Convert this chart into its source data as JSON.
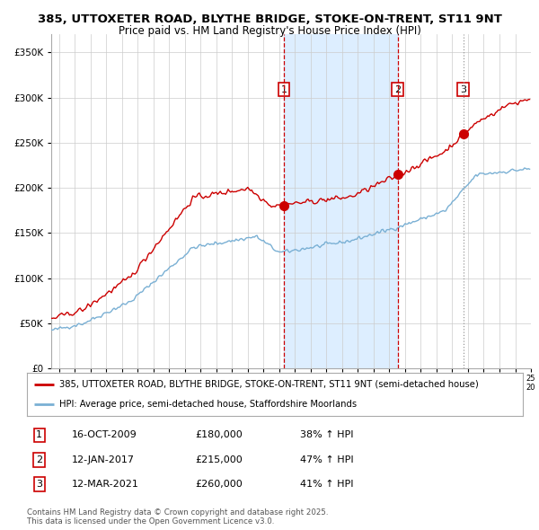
{
  "title_line1": "385, UTTOXETER ROAD, BLYTHE BRIDGE, STOKE-ON-TRENT, ST11 9NT",
  "title_line2": "Price paid vs. HM Land Registry's House Price Index (HPI)",
  "ylabel_ticks": [
    "£0",
    "£50K",
    "£100K",
    "£150K",
    "£200K",
    "£250K",
    "£300K",
    "£350K"
  ],
  "ytick_values": [
    0,
    50000,
    100000,
    150000,
    200000,
    250000,
    300000,
    350000
  ],
  "ylim": [
    0,
    370000
  ],
  "start_year": 1995,
  "end_year": 2025,
  "sale_dates": [
    "2009-10-16",
    "2017-01-12",
    "2021-03-12"
  ],
  "sale_prices": [
    180000,
    215000,
    260000
  ],
  "sale_labels": [
    "1",
    "2",
    "3"
  ],
  "sale_info": [
    {
      "label": "1",
      "date": "16-OCT-2009",
      "price": "£180,000",
      "hpi": "38% ↑ HPI"
    },
    {
      "label": "2",
      "date": "12-JAN-2017",
      "price": "£215,000",
      "hpi": "47% ↑ HPI"
    },
    {
      "label": "3",
      "date": "12-MAR-2021",
      "price": "£260,000",
      "hpi": "41% ↑ HPI"
    }
  ],
  "line_color_property": "#cc0000",
  "line_color_hpi": "#7ab0d4",
  "shade_color": "#ddeeff",
  "vline_color_dashed": "#cc0000",
  "vline_color_dotted": "#999999",
  "legend_label_property": "385, UTTOXETER ROAD, BLYTHE BRIDGE, STOKE-ON-TRENT, ST11 9NT (semi-detached house)",
  "legend_label_hpi": "HPI: Average price, semi-detached house, Staffordshire Moorlands",
  "footnote": "Contains HM Land Registry data © Crown copyright and database right 2025.\nThis data is licensed under the Open Government Licence v3.0.",
  "bg_color": "#ffffff",
  "grid_color": "#cccccc",
  "title_fontsize": 9.5,
  "subtitle_fontsize": 8.5,
  "axis_fontsize": 7.5
}
